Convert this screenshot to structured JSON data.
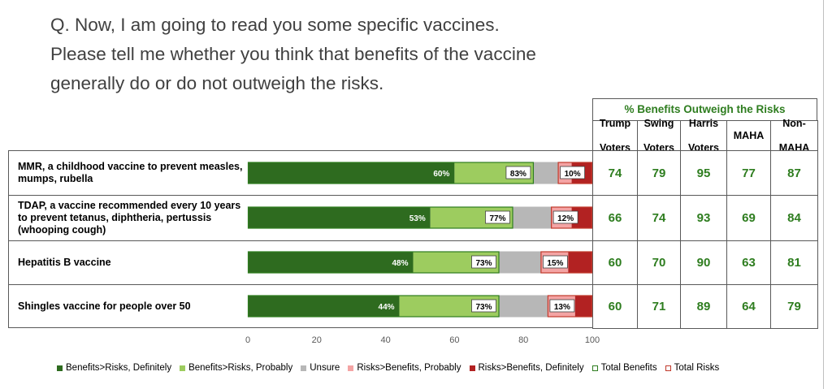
{
  "question": {
    "line1": "Q. Now, I am going to read you some specific vaccines.",
    "line2": "Please tell me whether you think that benefits of the vaccine",
    "line3": "generally do or do not outweigh the risks."
  },
  "table": {
    "title": "% Benefits Outweigh the Risks",
    "columns": [
      {
        "line1": "Trump",
        "line2": "Voters"
      },
      {
        "line1": "Swing",
        "line2": "Voters"
      },
      {
        "line1": "Harris",
        "line2": "Voters"
      },
      {
        "line1": "MAHA",
        "line2": ""
      },
      {
        "line1": "Non-",
        "line2": "MAHA"
      }
    ],
    "rows": [
      [
        "74",
        "79",
        "95",
        "77",
        "87"
      ],
      [
        "66",
        "74",
        "93",
        "69",
        "84"
      ],
      [
        "60",
        "70",
        "90",
        "63",
        "81"
      ],
      [
        "60",
        "71",
        "89",
        "64",
        "79"
      ]
    ]
  },
  "colors": {
    "benefits_definitely": "#2e6b1f",
    "benefits_probably": "#9dcc5f",
    "unsure": "#b7b7b7",
    "risks_probably": "#f4a4a4",
    "risks_definitely": "#b22222",
    "total_benefits_outline": "#2e7d1f",
    "total_risks_outline": "#c0392b",
    "table_value": "#2e7d1f"
  },
  "chart_data": {
    "type": "bar",
    "orientation": "horizontal",
    "stacked": true,
    "categories": [
      "MMR, a childhood vaccine to prevent measles, mumps, rubella",
      "TDAP, a vaccine recommended every 10 years to prevent tetanus, diphtheria, pertussis (whooping cough)",
      "Hepatitis B vaccine",
      "Shingles vaccine for people over 50"
    ],
    "series": [
      {
        "name": "Benefits>Risks, Definitely",
        "values": [
          60,
          53,
          48,
          44
        ]
      },
      {
        "name": "Benefits>Risks, Probably",
        "values": [
          23,
          24,
          25,
          29
        ]
      },
      {
        "name": "Unsure",
        "values": [
          7,
          11,
          12,
          14
        ]
      },
      {
        "name": "Risks>Benefits, Probably",
        "values": [
          4,
          6,
          8,
          8
        ]
      },
      {
        "name": "Risks>Benefits, Definitely",
        "values": [
          6,
          6,
          7,
          5
        ]
      }
    ],
    "totals": {
      "total_benefits": [
        83,
        77,
        73,
        73
      ],
      "total_risks": [
        10,
        12,
        15,
        13
      ]
    },
    "bar_labels": {
      "definitely": [
        "60%",
        "53%",
        "48%",
        "44%"
      ],
      "total_benefits": [
        "83%",
        "77%",
        "73%",
        "73%"
      ],
      "total_risks": [
        "10%",
        "12%",
        "15%",
        "13%"
      ]
    },
    "legend": [
      "Benefits>Risks, Definitely",
      "Benefits>Risks, Probably",
      "Unsure",
      "Risks>Benefits, Probably",
      "Risks>Benefits, Definitely",
      "Total Benefits",
      "Total Risks"
    ],
    "xticks": [
      "0",
      "20",
      "40",
      "60",
      "80",
      "100"
    ],
    "xlim": [
      0,
      100
    ],
    "grid": false,
    "legend_position": "bottom"
  }
}
